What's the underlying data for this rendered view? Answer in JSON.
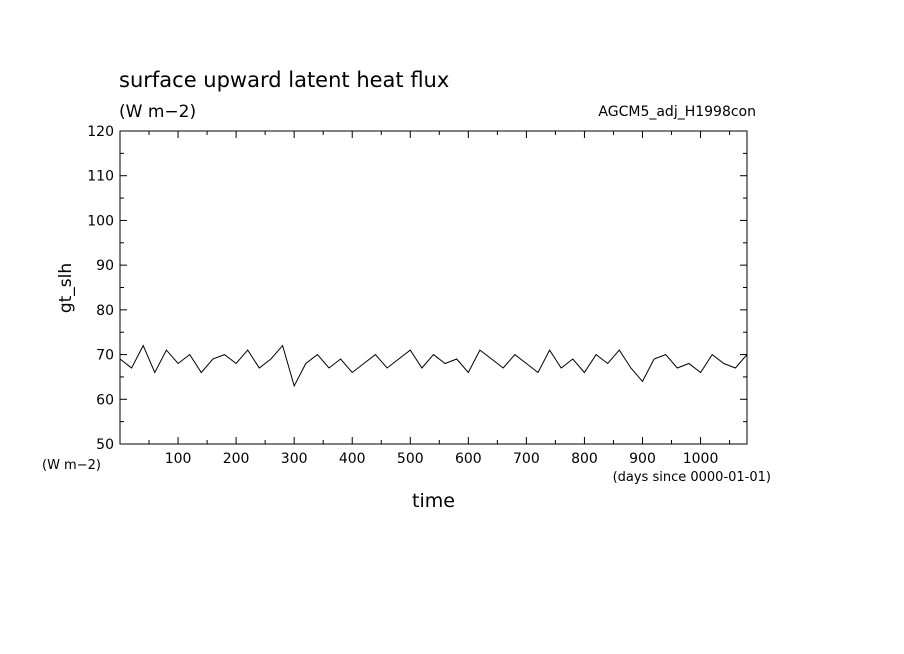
{
  "chart_data": {
    "type": "line",
    "title": "surface upward latent heat flux",
    "subtitle": "(W m−2)",
    "run_label": "AGCM5_adj_H1998con",
    "xlabel": "time",
    "x_units": "(days since 0000-01-01)",
    "ylabel": "gt_slh",
    "y_units": "(W m−2)",
    "xlim": [
      0,
      1080
    ],
    "ylim": [
      50,
      120
    ],
    "x_ticks": [
      100,
      200,
      300,
      400,
      500,
      600,
      700,
      800,
      900,
      1000
    ],
    "y_ticks": [
      50,
      60,
      70,
      80,
      90,
      100,
      110,
      120
    ],
    "grid": false,
    "legend": "none",
    "line_color": "#000000",
    "series": [
      {
        "x": [
          0,
          20,
          40,
          60,
          80,
          100,
          120,
          140,
          160,
          180,
          200,
          220,
          240,
          260,
          280,
          300,
          320,
          340,
          360,
          380,
          400,
          420,
          440,
          460,
          480,
          500,
          520,
          540,
          560,
          580,
          600,
          620,
          640,
          660,
          680,
          700,
          720,
          740,
          760,
          780,
          800,
          820,
          840,
          860,
          880,
          900,
          920,
          940,
          960,
          980,
          1000,
          1020,
          1040,
          1060,
          1080
        ],
        "values": [
          69,
          67,
          72,
          66,
          71,
          68,
          70,
          66,
          69,
          70,
          68,
          71,
          67,
          69,
          72,
          63,
          68,
          70,
          67,
          69,
          66,
          68,
          70,
          67,
          69,
          71,
          67,
          70,
          68,
          69,
          66,
          71,
          69,
          67,
          70,
          68,
          66,
          71,
          67,
          69,
          66,
          70,
          68,
          71,
          67,
          64,
          69,
          70,
          67,
          68,
          66,
          70,
          68,
          67,
          70
        ]
      }
    ]
  }
}
